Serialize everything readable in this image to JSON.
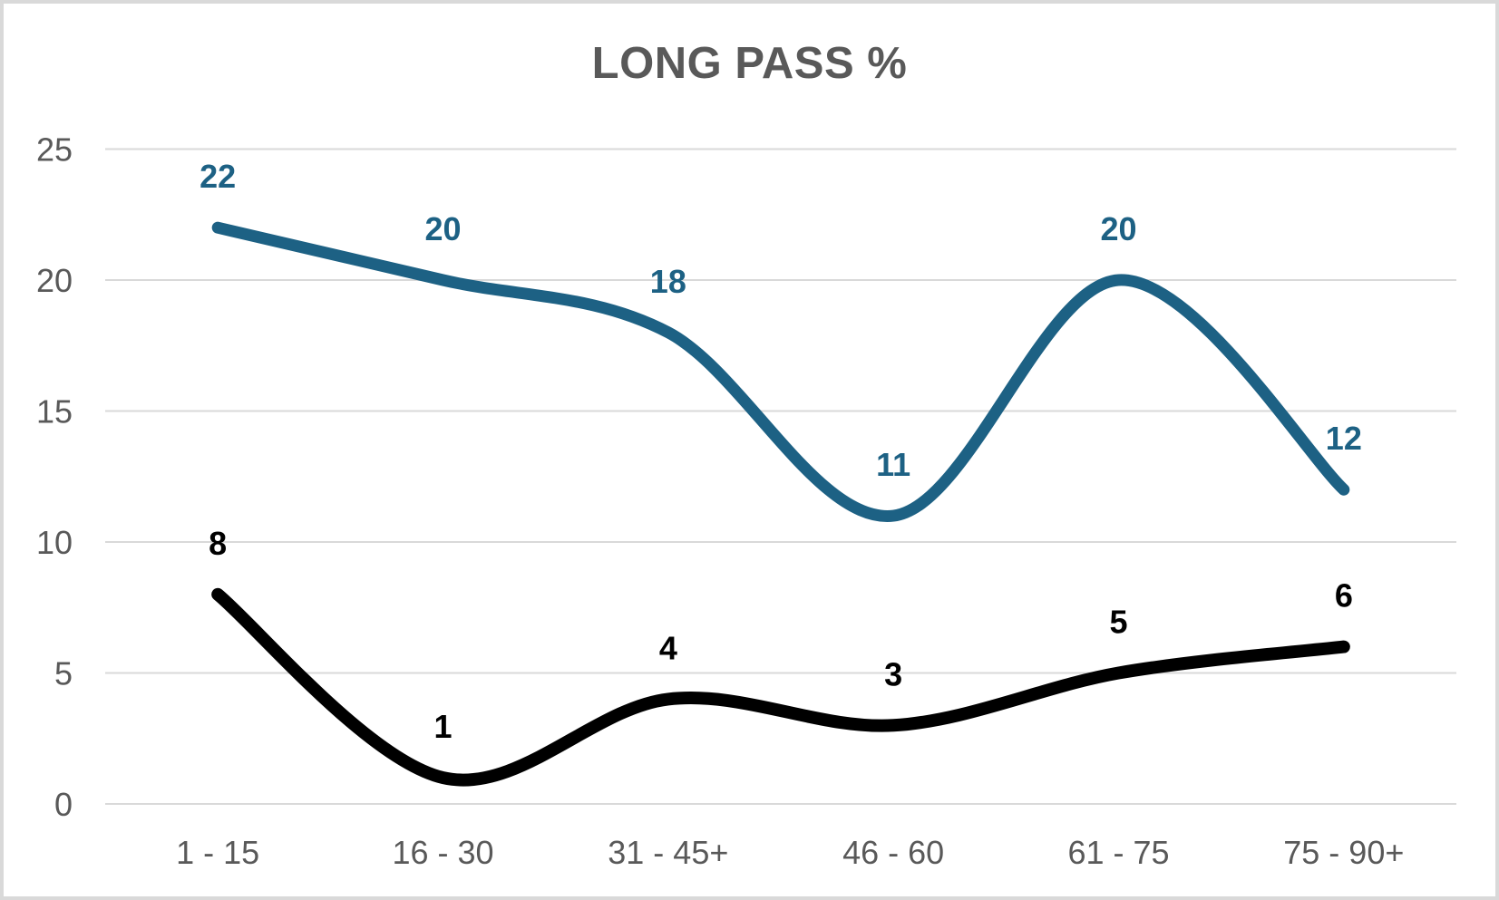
{
  "title": "LONG PASS %",
  "colors": {
    "accent_blue": "#1D6184",
    "accent_black": "#000000",
    "gridline": "#D9D9D9",
    "axis_text": "#595959",
    "title_text": "#595959",
    "border": "#D9D9D9",
    "background": "#FFFFFF"
  },
  "chart_data": {
    "type": "line",
    "title": "LONG PASS %",
    "categories": [
      "1 - 15",
      "16 - 30",
      "31 - 45+",
      "46 - 60",
      "61 - 75",
      "75 - 90+"
    ],
    "series": [
      {
        "name": "series_1",
        "color": "#1D6184",
        "stroke_width": 13,
        "values": [
          22,
          20,
          18,
          11,
          20,
          12
        ],
        "labels": [
          "22",
          "20",
          "18",
          "11",
          "20",
          "12"
        ]
      },
      {
        "name": "series_2",
        "color": "#000000",
        "stroke_width": 14,
        "values": [
          8,
          1,
          4,
          3,
          5,
          6
        ],
        "labels": [
          "8",
          "1",
          "4",
          "3",
          "5",
          "6"
        ]
      }
    ],
    "xlabel": "",
    "ylabel": "",
    "ylim": [
      0,
      25
    ],
    "yticks": [
      0,
      5,
      10,
      15,
      20,
      25
    ],
    "grid": true,
    "legend": "none",
    "smooth": true,
    "data_labels": true
  }
}
